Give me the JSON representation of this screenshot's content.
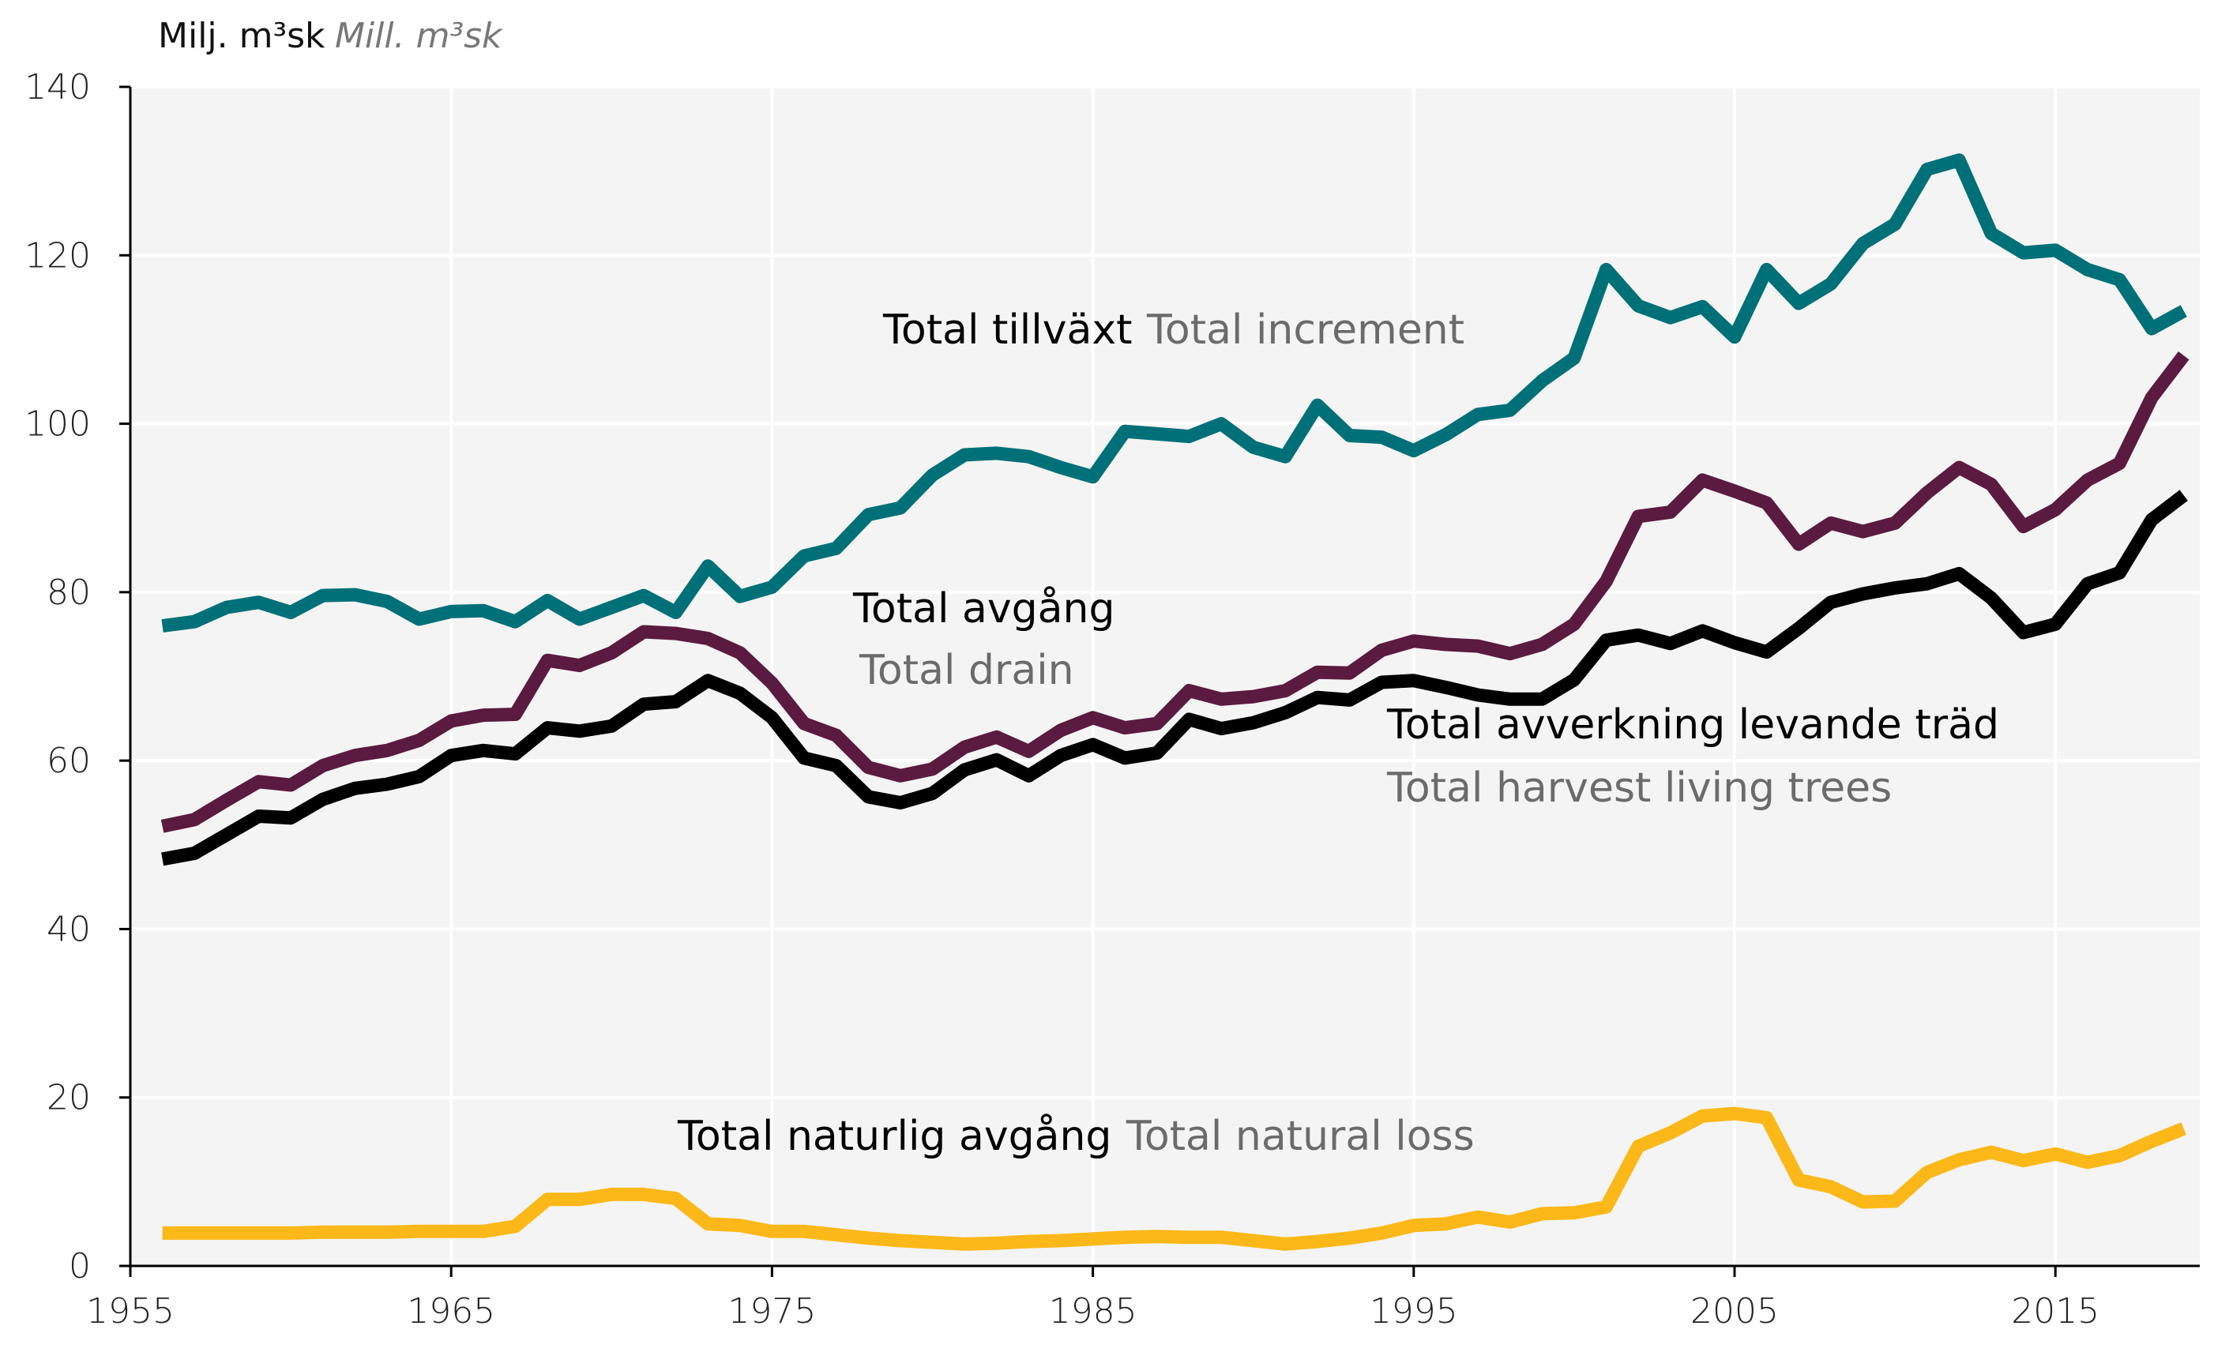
{
  "chart_data": {
    "type": "line",
    "unit_label": {
      "sv": "Milj. m³sk",
      "en": "Mill. m³sk"
    },
    "ylim": [
      0,
      140
    ],
    "yticks": [
      0,
      20,
      40,
      60,
      80,
      100,
      120,
      140
    ],
    "xlim": [
      1955,
      2019.5
    ],
    "xticks": [
      1955,
      1965,
      1975,
      1985,
      1995,
      2005,
      2015
    ],
    "grid": true,
    "x": [
      1956,
      1957,
      1958,
      1959,
      1960,
      1961,
      1962,
      1963,
      1964,
      1965,
      1966,
      1967,
      1968,
      1969,
      1970,
      1971,
      1972,
      1973,
      1974,
      1975,
      1976,
      1977,
      1978,
      1979,
      1980,
      1981,
      1982,
      1983,
      1984,
      1985,
      1986,
      1987,
      1988,
      1989,
      1990,
      1991,
      1992,
      1993,
      1994,
      1995,
      1996,
      1997,
      1998,
      1999,
      2000,
      2001,
      2002,
      2003,
      2004,
      2005,
      2006,
      2007,
      2008,
      2009,
      2010,
      2011,
      2012,
      2013,
      2014,
      2015,
      2016,
      2017,
      2018,
      2019
    ],
    "series": [
      {
        "key": "increment",
        "name": "Total tillväxt",
        "name_en": "Total increment",
        "color": "#007078",
        "values": [
          76.0,
          76.5,
          78.2,
          78.8,
          77.6,
          79.6,
          79.7,
          78.9,
          76.8,
          77.7,
          77.8,
          76.5,
          79.0,
          76.8,
          78.2,
          79.6,
          77.6,
          83.1,
          79.5,
          80.6,
          84.3,
          85.2,
          89.2,
          90.0,
          93.9,
          96.3,
          96.5,
          96.1,
          94.8,
          93.7,
          99.1,
          98.8,
          98.5,
          100.0,
          97.2,
          96.1,
          102.2,
          98.6,
          98.4,
          96.8,
          98.7,
          101.1,
          101.6,
          105.1,
          107.8,
          118.3,
          114.0,
          112.6,
          113.9,
          110.3,
          118.3,
          114.3,
          116.6,
          121.4,
          123.7,
          130.2,
          131.3,
          122.6,
          120.3,
          120.6,
          118.3,
          117.1,
          111.3,
          113.4
        ]
      },
      {
        "key": "drain",
        "name": "Total avgång",
        "name_en": "Total drain",
        "color": "#5b1a3f",
        "values": [
          52.2,
          53.0,
          55.3,
          57.5,
          57.1,
          59.4,
          60.6,
          61.2,
          62.4,
          64.7,
          65.4,
          65.5,
          71.9,
          71.3,
          72.8,
          75.3,
          75.1,
          74.5,
          72.8,
          69.2,
          64.4,
          63.0,
          59.2,
          58.2,
          59.0,
          61.6,
          62.8,
          61.1,
          63.6,
          65.1,
          63.9,
          64.4,
          68.3,
          67.3,
          67.6,
          68.3,
          70.5,
          70.4,
          73.1,
          74.2,
          73.8,
          73.6,
          72.7,
          73.8,
          76.2,
          81.3,
          89.0,
          89.5,
          93.3,
          92.0,
          90.6,
          85.7,
          88.2,
          87.2,
          88.2,
          91.8,
          94.8,
          92.8,
          87.8,
          89.8,
          93.3,
          95.3,
          103.1,
          108.1
        ]
      },
      {
        "key": "harvest",
        "name": "Total avverkning levande träd",
        "name_en": "Total harvest living trees",
        "color": "#000000",
        "values": [
          48.3,
          49.0,
          51.2,
          53.4,
          53.2,
          55.4,
          56.7,
          57.2,
          58.1,
          60.6,
          61.2,
          60.8,
          63.9,
          63.5,
          64.1,
          66.7,
          67.0,
          69.5,
          68.0,
          65.1,
          60.3,
          59.4,
          55.7,
          55.0,
          56.1,
          58.9,
          60.1,
          58.2,
          60.6,
          61.9,
          60.3,
          60.9,
          64.9,
          63.8,
          64.5,
          65.7,
          67.5,
          67.2,
          69.3,
          69.5,
          68.7,
          67.8,
          67.3,
          67.3,
          69.6,
          74.3,
          74.9,
          73.9,
          75.4,
          74.0,
          72.9,
          75.7,
          78.8,
          79.8,
          80.5,
          81.0,
          82.2,
          79.3,
          75.2,
          76.2,
          81.0,
          82.3,
          88.6,
          91.5
        ]
      },
      {
        "key": "natural_loss",
        "name": "Total naturlig avgång",
        "name_en": "Total natural loss",
        "color": "#fbb818",
        "values": [
          3.9,
          3.9,
          3.9,
          3.9,
          3.9,
          4.0,
          4.0,
          4.0,
          4.1,
          4.1,
          4.1,
          4.7,
          7.9,
          7.9,
          8.5,
          8.5,
          8.0,
          5.0,
          4.8,
          4.1,
          4.1,
          3.7,
          3.3,
          3.0,
          2.8,
          2.6,
          2.7,
          2.9,
          3.0,
          3.2,
          3.4,
          3.5,
          3.4,
          3.4,
          3.0,
          2.6,
          2.9,
          3.3,
          3.9,
          4.8,
          5.0,
          5.8,
          5.2,
          6.2,
          6.3,
          7.0,
          14.2,
          15.8,
          17.8,
          18.1,
          17.6,
          10.2,
          9.4,
          7.6,
          7.7,
          11.1,
          12.6,
          13.5,
          12.5,
          13.3,
          12.3,
          13.1,
          14.8,
          16.3
        ]
      }
    ]
  }
}
